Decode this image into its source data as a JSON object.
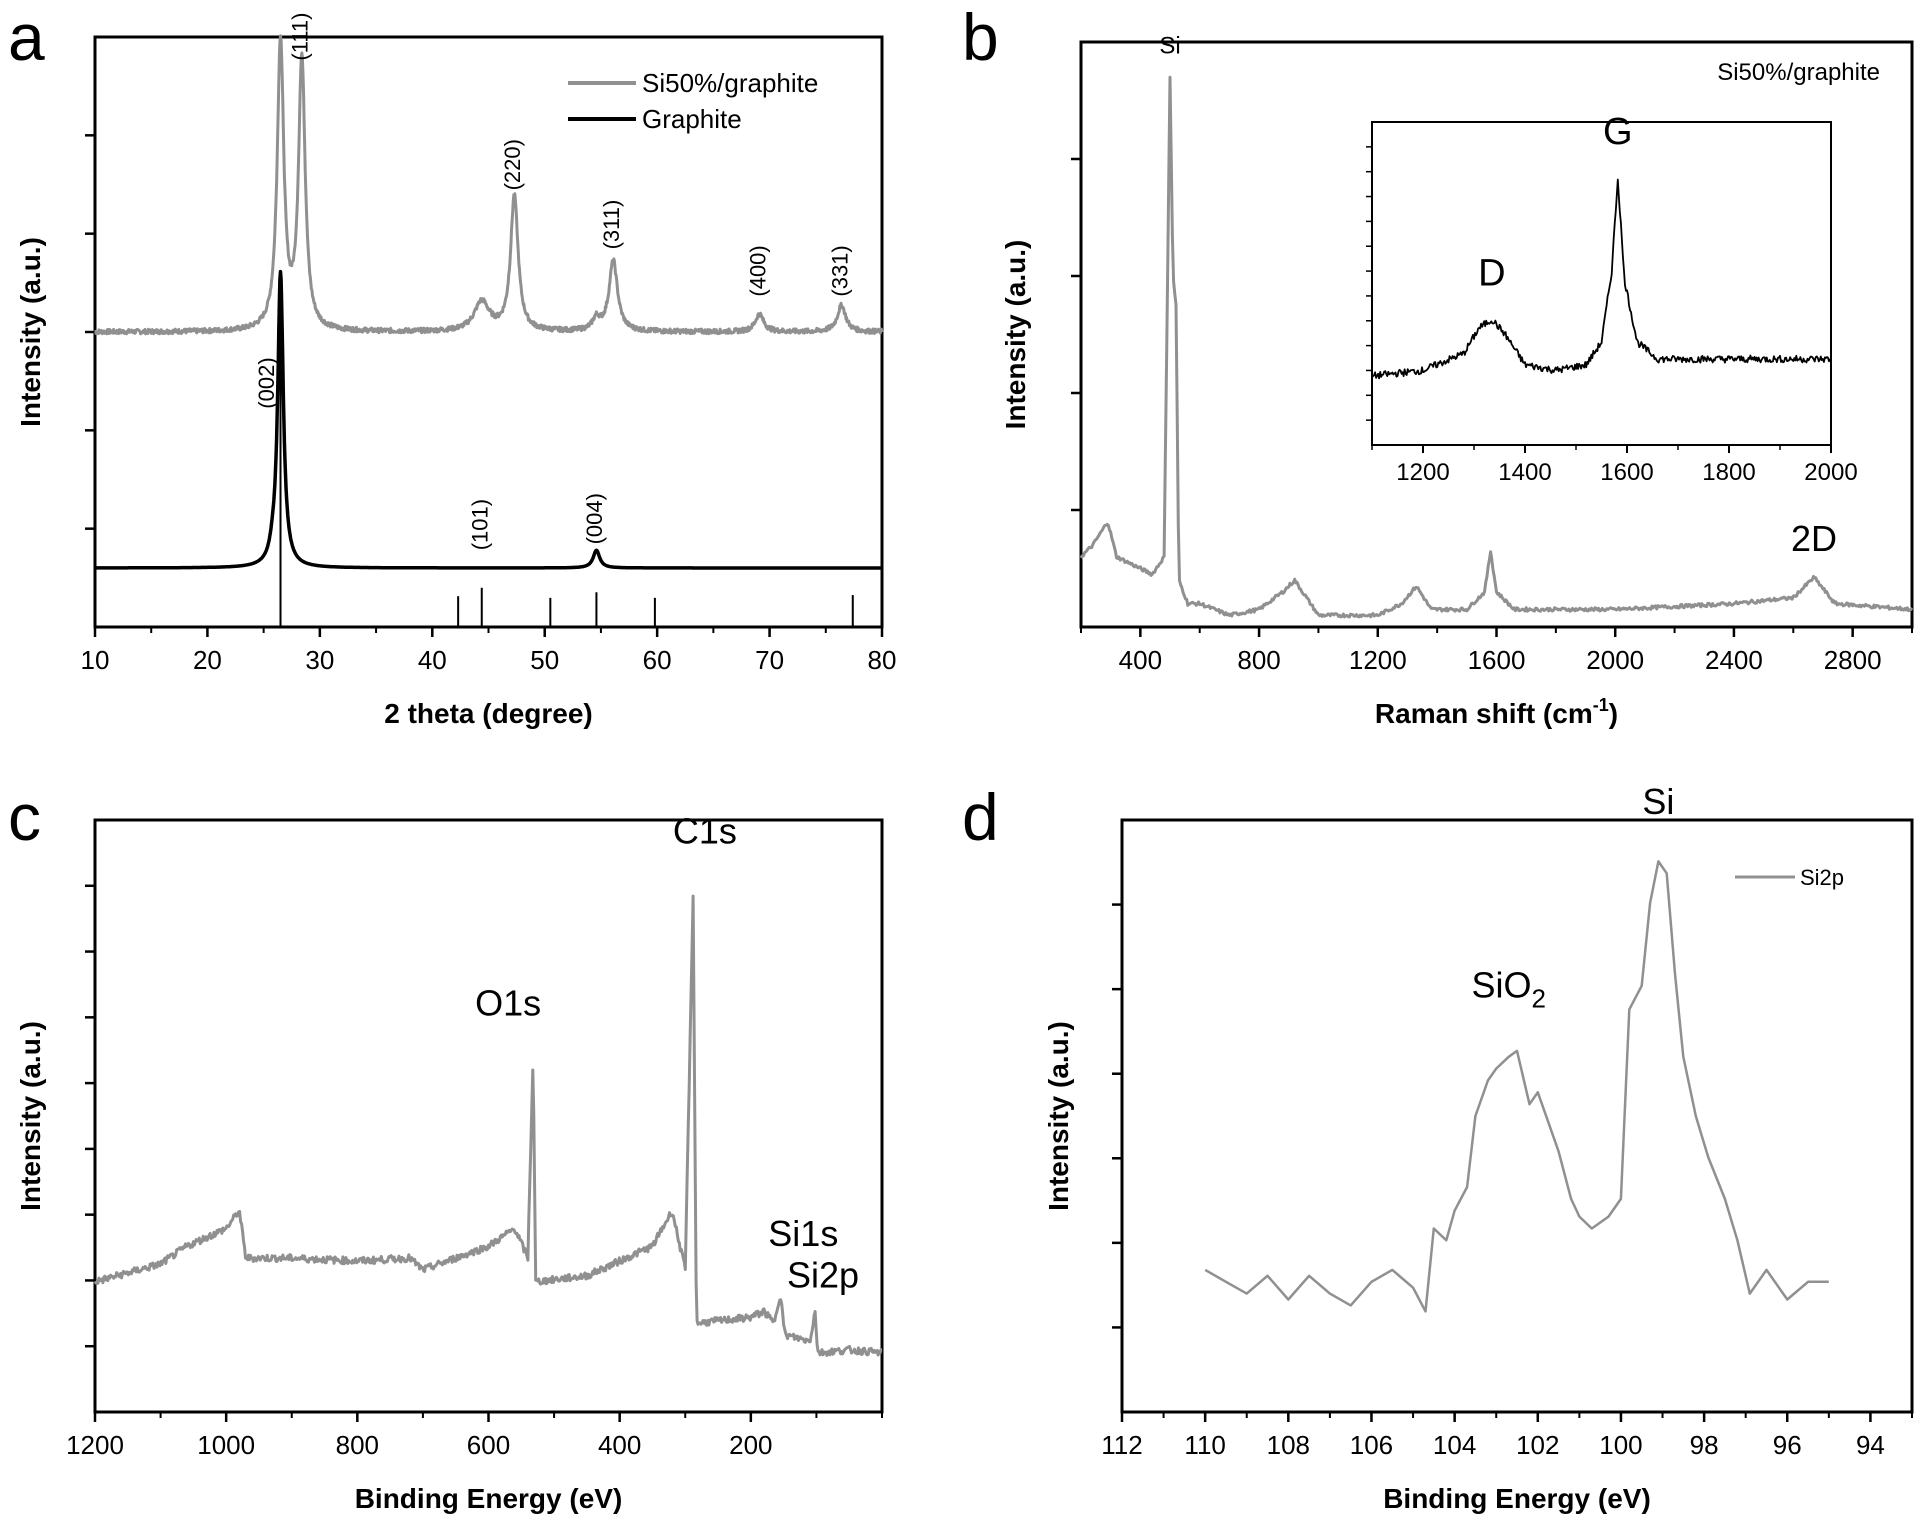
{
  "chart_data": [
    {
      "id": "a",
      "panel_label": "a",
      "type": "line",
      "title": "",
      "xlabel": "2 theta (degree)",
      "ylabel": "Intensity (a.u.)",
      "xlim": [
        10,
        80
      ],
      "ylim": [
        0,
        100
      ],
      "xticks": [
        10,
        20,
        30,
        40,
        50,
        60,
        70,
        80
      ],
      "grid": false,
      "legend": {
        "placement": "top-right",
        "entries": [
          {
            "name": "Si50%/graphite",
            "color": "#909090"
          },
          {
            "name": "Graphite",
            "color": "#000000"
          }
        ]
      },
      "series": [
        {
          "name": "Si50%/graphite",
          "color": "#909090",
          "baseline": 50,
          "peaks": [
            [
              26.5,
              49,
              0.35
            ],
            [
              28.4,
              46,
              0.35
            ],
            [
              44.4,
              5,
              0.8
            ],
            [
              47.3,
              23,
              0.4
            ],
            [
              54.6,
              2,
              0.4
            ],
            [
              56.1,
              12,
              0.45
            ],
            [
              69.1,
              3,
              0.45
            ],
            [
              76.4,
              4.5,
              0.45
            ]
          ]
        },
        {
          "name": "Graphite",
          "color": "#000000",
          "baseline": 10,
          "peaks": [
            [
              26.5,
              50,
              0.3
            ],
            [
              54.6,
              3,
              0.35
            ],
            [
              25.8,
              1.5,
              0.3
            ]
          ]
        }
      ],
      "reference_lines": {
        "x": [
          26.5,
          42.3,
          44.4,
          50.5,
          54.6,
          59.8,
          77.4
        ],
        "heights": [
          100,
          55,
          70,
          52,
          62,
          52,
          57
        ]
      },
      "annotations": [
        {
          "text": "(111)",
          "x": 28.4,
          "y": 96,
          "rotate": true
        },
        {
          "text": "(220)",
          "x": 47.3,
          "y": 74,
          "rotate": true
        },
        {
          "text": "(311)",
          "x": 56.1,
          "y": 64,
          "rotate": true
        },
        {
          "text": "(400)",
          "x": 69.1,
          "y": 56,
          "rotate": true
        },
        {
          "text": "(331)",
          "x": 76.4,
          "y": 56,
          "rotate": true
        },
        {
          "text": "(002)",
          "x": 25.4,
          "y": 37,
          "rotate": true
        },
        {
          "text": "(101)",
          "x": 44.4,
          "y": 13,
          "rotate": true
        },
        {
          "text": "(004)",
          "x": 54.6,
          "y": 14,
          "rotate": true
        }
      ]
    },
    {
      "id": "b",
      "panel_label": "b",
      "type": "line",
      "title": "Si50%/graphite",
      "xlabel": "Raman shift (cm",
      "xlabel_sup": "-1",
      "xlabel_end": ")",
      "ylabel": "Intensity (a.u.)",
      "xlim": [
        200,
        3000
      ],
      "ylim": [
        0,
        100
      ],
      "xticks": [
        400,
        800,
        1200,
        1600,
        2000,
        2400,
        2800
      ],
      "grid": false,
      "series": [
        {
          "name": "Si50%/graphite",
          "color": "#909090",
          "points": [
            [
              200,
              12
            ],
            [
              240,
              14
            ],
            [
              290,
              18
            ],
            [
              320,
              12
            ],
            [
              400,
              10
            ],
            [
              440,
              9
            ],
            [
              480,
              12
            ],
            [
              500,
              94
            ],
            [
              510,
              60
            ],
            [
              520,
              55
            ],
            [
              530,
              8
            ],
            [
              560,
              4
            ],
            [
              600,
              4
            ],
            [
              700,
              2
            ],
            [
              800,
              3
            ],
            [
              880,
              6
            ],
            [
              920,
              8
            ],
            [
              960,
              5
            ],
            [
              1000,
              2
            ],
            [
              1200,
              2
            ],
            [
              1280,
              4
            ],
            [
              1330,
              7
            ],
            [
              1380,
              3
            ],
            [
              1500,
              3
            ],
            [
              1560,
              6
            ],
            [
              1580,
              13
            ],
            [
              1600,
              6
            ],
            [
              1660,
              3
            ],
            [
              2000,
              3
            ],
            [
              2400,
              4
            ],
            [
              2600,
              5
            ],
            [
              2670,
              8.5
            ],
            [
              2740,
              4
            ],
            [
              3000,
              3
            ]
          ]
        }
      ],
      "annotations": [
        {
          "text": "Si",
          "x": 500,
          "y": 98
        },
        {
          "text": "2D",
          "x": 2670,
          "y": 13
        }
      ],
      "inset": {
        "type": "line",
        "xlim": [
          1100,
          2000
        ],
        "ylim": [
          0,
          100
        ],
        "xticks": [
          1200,
          1400,
          1600,
          1800,
          2000
        ],
        "series": [
          {
            "name": "Si50%/graphite inset",
            "color": "#000000",
            "points": [
              [
                1100,
                18
              ],
              [
                1200,
                20
              ],
              [
                1280,
                26
              ],
              [
                1310,
                35
              ],
              [
                1335,
                38
              ],
              [
                1360,
                33
              ],
              [
                1400,
                22
              ],
              [
                1460,
                20
              ],
              [
                1520,
                22
              ],
              [
                1550,
                30
              ],
              [
                1570,
                55
              ],
              [
                1582,
                88
              ],
              [
                1595,
                52
              ],
              [
                1620,
                30
              ],
              [
                1660,
                24
              ],
              [
                1800,
                24
              ],
              [
                2000,
                24
              ]
            ]
          }
        ],
        "annotations": [
          {
            "text": "D",
            "x": 1335,
            "y": 50
          },
          {
            "text": "G",
            "x": 1582,
            "y": 100
          }
        ]
      }
    },
    {
      "id": "c",
      "panel_label": "c",
      "type": "line",
      "title": "",
      "xlabel": "Binding Energy (eV)",
      "ylabel": "Intensity (a.u.)",
      "xlim": [
        1200,
        0
      ],
      "ylim": [
        0,
        100
      ],
      "xticks": [
        1200,
        1000,
        800,
        600,
        400,
        200
      ],
      "grid": false,
      "series": [
        {
          "name": "Survey",
          "color": "#909090",
          "points": [
            [
              1200,
              12
            ],
            [
              1100,
              15
            ],
            [
              1060,
              18
            ],
            [
              1000,
              21
            ],
            [
              980,
              24
            ],
            [
              970,
              16
            ],
            [
              900,
              16
            ],
            [
              800,
              15.5
            ],
            [
              720,
              16
            ],
            [
              700,
              14
            ],
            [
              600,
              18
            ],
            [
              560,
              21
            ],
            [
              540,
              16
            ],
            [
              532,
              50
            ],
            [
              528,
              12
            ],
            [
              450,
              13
            ],
            [
              350,
              18
            ],
            [
              320,
              24
            ],
            [
              300,
              14
            ],
            [
              288,
              77
            ],
            [
              283,
              5
            ],
            [
              200,
              6
            ],
            [
              180,
              7
            ],
            [
              165,
              5
            ],
            [
              155,
              10
            ],
            [
              148,
              3
            ],
            [
              110,
              2
            ],
            [
              102,
              7
            ],
            [
              98,
              0
            ],
            [
              50,
              0.5
            ],
            [
              0,
              0
            ]
          ]
        }
      ],
      "annotations": [
        {
          "text": "C1s",
          "x": 270,
          "y": 86
        },
        {
          "text": "O1s",
          "x": 570,
          "y": 57
        },
        {
          "text": "Si1s",
          "x": 120,
          "y": 18
        },
        {
          "text": "Si2p",
          "x": 90,
          "y": 11
        }
      ]
    },
    {
      "id": "d",
      "panel_label": "d",
      "type": "line",
      "title": "",
      "xlabel": "Binding Energy (eV)",
      "ylabel": "Intensity (a.u.)",
      "xlim": [
        112,
        93
      ],
      "ylim": [
        0,
        100
      ],
      "xticks": [
        112,
        110,
        108,
        106,
        104,
        102,
        100,
        98,
        96,
        94
      ],
      "grid": false,
      "legend": {
        "placement": "top-right",
        "entries": [
          {
            "name": "Si2p",
            "color": "#909090"
          }
        ]
      },
      "series": [
        {
          "name": "Si2p",
          "color": "#909090",
          "points": [
            [
              110,
              18
            ],
            [
              109.5,
              16
            ],
            [
              109,
              14
            ],
            [
              108.5,
              17
            ],
            [
              108,
              13
            ],
            [
              107.5,
              17
            ],
            [
              107,
              14
            ],
            [
              106.5,
              12
            ],
            [
              106,
              16
            ],
            [
              105.5,
              18
            ],
            [
              105,
              15
            ],
            [
              104.7,
              11
            ],
            [
              104.5,
              25
            ],
            [
              104.2,
              23
            ],
            [
              104,
              28
            ],
            [
              103.7,
              32
            ],
            [
              103.5,
              44
            ],
            [
              103.2,
              50
            ],
            [
              103,
              52
            ],
            [
              102.7,
              54
            ],
            [
              102.5,
              55
            ],
            [
              102.2,
              46
            ],
            [
              102,
              48
            ],
            [
              101.7,
              42
            ],
            [
              101.5,
              38
            ],
            [
              101.2,
              30
            ],
            [
              101,
              27
            ],
            [
              100.7,
              25
            ],
            [
              100.3,
              27
            ],
            [
              100,
              30
            ],
            [
              99.8,
              62
            ],
            [
              99.5,
              66
            ],
            [
              99.3,
              80
            ],
            [
              99.1,
              87
            ],
            [
              98.9,
              85
            ],
            [
              98.7,
              68
            ],
            [
              98.5,
              54
            ],
            [
              98.2,
              44
            ],
            [
              97.9,
              37
            ],
            [
              97.5,
              30
            ],
            [
              97.2,
              23
            ],
            [
              96.9,
              14
            ],
            [
              96.5,
              18
            ],
            [
              96,
              13
            ],
            [
              95.5,
              16
            ],
            [
              95,
              16
            ]
          ]
        }
      ],
      "annotations": [
        {
          "text": "Si",
          "x": 99.1,
          "y": 95
        },
        {
          "text": "SiO",
          "sub": "2",
          "x": 102.7,
          "y": 64
        }
      ]
    }
  ]
}
